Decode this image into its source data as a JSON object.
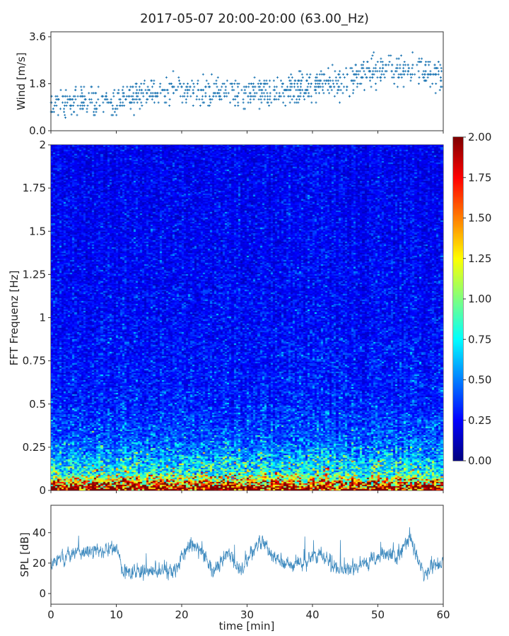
{
  "title": "2017-05-07 20:00-20:00 (63.00_Hz)",
  "chart_data": [
    {
      "type": "scatter",
      "panel": "wind",
      "ylabel": "Wind [m/s]",
      "ylim": [
        0,
        3.6
      ],
      "yticks": [
        "0.0",
        "1.8",
        "3.6"
      ],
      "xlim": [
        0,
        60
      ],
      "marker": "+",
      "color": "#1f77b4",
      "trend_minutes": [
        0,
        5,
        10,
        15,
        20,
        25,
        30,
        35,
        40,
        45,
        50,
        55,
        60
      ],
      "trend_mean_ms": [
        1.05,
        1.15,
        1.1,
        1.45,
        1.55,
        1.45,
        1.5,
        1.5,
        1.75,
        1.9,
        2.3,
        2.3,
        2.2
      ]
    },
    {
      "type": "heatmap",
      "panel": "spectrogram",
      "ylabel": "FFT Frequenz [Hz]",
      "ylim": [
        0,
        2
      ],
      "yticks": [
        "0",
        "0.25",
        "0.5",
        "0.75",
        "1",
        "1.25",
        "1.5",
        "1.75",
        "2"
      ],
      "xlim": [
        0,
        60
      ],
      "colormap": "jet",
      "clim": [
        0,
        2
      ],
      "colorbar_ticks": [
        "0.00",
        "0.25",
        "0.50",
        "0.75",
        "1.00",
        "1.25",
        "1.50",
        "1.75",
        "2.00"
      ],
      "freq_profile_hz": [
        0,
        0.05,
        0.1,
        0.2,
        0.3,
        0.5,
        1.0,
        2.0
      ],
      "freq_profile_mean": [
        2.0,
        1.3,
        0.8,
        0.55,
        0.4,
        0.3,
        0.25,
        0.22
      ]
    },
    {
      "type": "line",
      "panel": "spl",
      "ylabel": "SPL [dB]",
      "xlabel": "time [min]",
      "ylim": [
        -7,
        58
      ],
      "yticks": [
        "0",
        "20",
        "40"
      ],
      "xlim": [
        0,
        60
      ],
      "xticks": [
        "0",
        "10",
        "20",
        "30",
        "40",
        "50",
        "60"
      ],
      "color": "#1f77b4",
      "trend_minutes": [
        0,
        2,
        5,
        9,
        10,
        11,
        15,
        19,
        21,
        23,
        25,
        27,
        29,
        32,
        34,
        36,
        38,
        41,
        43,
        45,
        47,
        49,
        51,
        53,
        55,
        57,
        59,
        60
      ],
      "trend_db": [
        20,
        24,
        27,
        29,
        30,
        15,
        15,
        14,
        32,
        28,
        15,
        28,
        14,
        35,
        25,
        18,
        20,
        27,
        18,
        15,
        18,
        21,
        25,
        25,
        37,
        12,
        20,
        22
      ]
    }
  ]
}
